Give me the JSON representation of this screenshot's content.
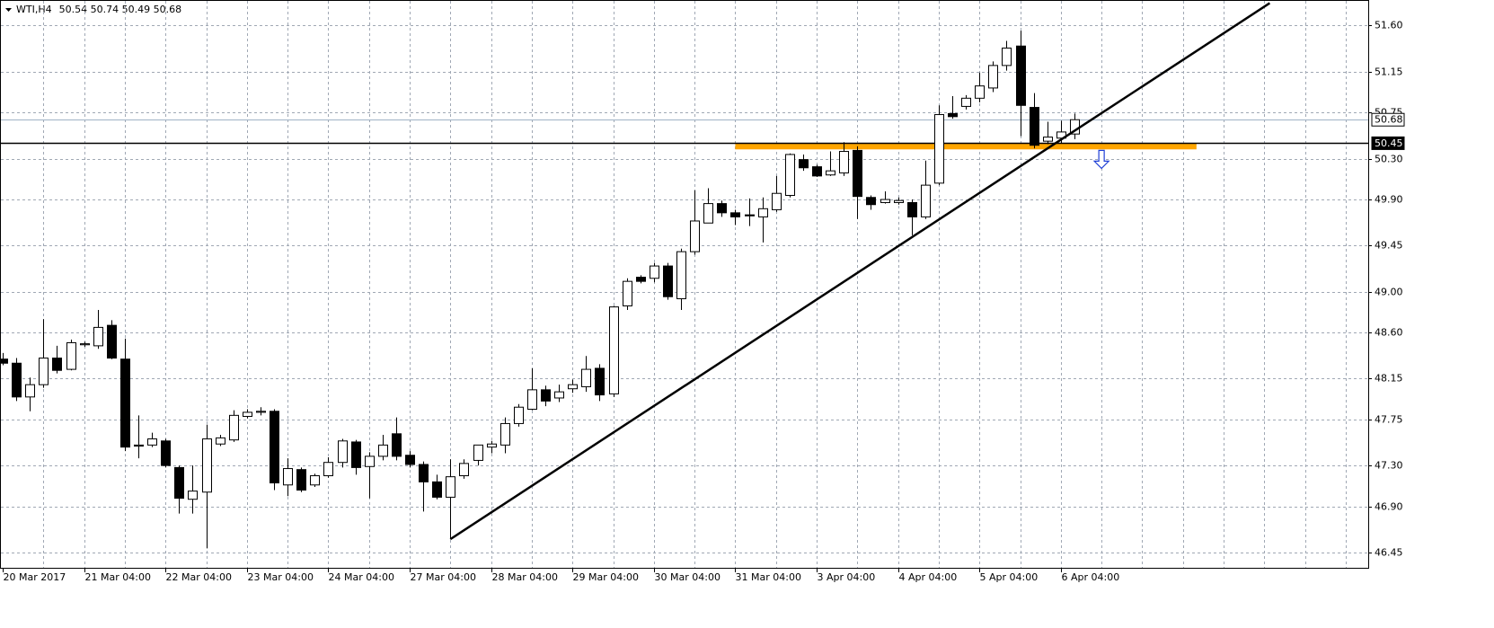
{
  "chart_data": {
    "type": "candlestick",
    "title": "WTI,H4",
    "title_values": "50.54 50.74 50.49 50.68",
    "categories": [
      "20 Mar 2017",
      null,
      null,
      null,
      null,
      null,
      "21 Mar 04:00",
      null,
      null,
      null,
      null,
      null,
      "22 Mar 04:00",
      null,
      null,
      null,
      null,
      null,
      "23 Mar 04:00",
      null,
      null,
      null,
      null,
      null,
      "24 Mar 04:00",
      null,
      null,
      null,
      null,
      null,
      "27 Mar 04:00",
      null,
      null,
      null,
      null,
      null,
      "28 Mar 04:00",
      null,
      null,
      null,
      null,
      null,
      "29 Mar 04:00",
      null,
      null,
      null,
      null,
      null,
      "30 Mar 04:00",
      null,
      null,
      null,
      null,
      null,
      "31 Mar 04:00",
      null,
      null,
      null,
      null,
      null,
      "3 Apr 04:00",
      null,
      null,
      null,
      null,
      null,
      "4 Apr 04:00",
      null,
      null,
      null,
      null,
      null,
      "5 Apr 04:00",
      null,
      null,
      null,
      null,
      null,
      "6 Apr 04:00",
      null
    ],
    "open": [
      48.34,
      48.3,
      47.97,
      48.09,
      48.35,
      48.24,
      48.48,
      48.47,
      48.67,
      48.34,
      47.49,
      47.5,
      47.54,
      47.28,
      46.97,
      47.04,
      47.51,
      47.55,
      47.78,
      47.82,
      47.83,
      47.11,
      47.26,
      47.11,
      47.2,
      47.33,
      47.53,
      47.29,
      47.39,
      47.61,
      47.4,
      47.31,
      47.14,
      46.99,
      47.2,
      47.35,
      47.48,
      47.5,
      47.71,
      47.85,
      48.04,
      47.96,
      48.05,
      48.07,
      48.25,
      48.0,
      48.86,
      49.14,
      49.13,
      49.25,
      48.93,
      49.39,
      49.67,
      49.86,
      49.77,
      49.75,
      49.73,
      49.8,
      49.94,
      50.29,
      50.22,
      50.14,
      50.16,
      50.38,
      49.92,
      49.87,
      49.87,
      49.87,
      49.73,
      50.06,
      50.74,
      50.81,
      50.89,
      50.99,
      51.21,
      51.4,
      50.8,
      50.47,
      50.5,
      50.54
    ],
    "high": [
      48.4,
      48.35,
      48.16,
      48.73,
      48.47,
      48.53,
      48.51,
      48.82,
      48.72,
      48.54,
      47.79,
      47.62,
      47.56,
      47.3,
      47.3,
      47.7,
      47.6,
      47.84,
      47.85,
      47.87,
      47.85,
      47.37,
      47.28,
      47.22,
      47.38,
      47.56,
      47.55,
      47.43,
      47.6,
      47.77,
      47.44,
      47.34,
      47.21,
      47.36,
      47.36,
      47.5,
      47.54,
      47.77,
      47.9,
      48.25,
      48.08,
      48.09,
      48.14,
      48.37,
      48.29,
      48.86,
      49.13,
      49.16,
      49.28,
      49.28,
      49.42,
      49.99,
      50.01,
      49.89,
      49.8,
      49.91,
      49.92,
      50.13,
      50.35,
      50.34,
      50.24,
      50.37,
      50.46,
      50.42,
      49.94,
      49.98,
      49.92,
      49.9,
      50.28,
      50.82,
      50.91,
      50.92,
      51.14,
      51.25,
      51.45,
      51.55,
      50.94,
      50.66,
      50.67,
      50.74
    ],
    "low": [
      48.28,
      47.93,
      47.83,
      48.06,
      48.2,
      48.23,
      48.46,
      48.44,
      48.34,
      47.44,
      47.37,
      47.48,
      47.28,
      46.83,
      46.83,
      46.49,
      47.49,
      47.53,
      47.76,
      47.79,
      47.06,
      47.0,
      47.04,
      47.09,
      47.18,
      47.28,
      47.21,
      46.98,
      47.35,
      47.35,
      47.28,
      46.85,
      46.97,
      46.58,
      47.17,
      47.3,
      47.42,
      47.42,
      47.68,
      47.84,
      47.88,
      47.92,
      48.01,
      48.02,
      47.93,
      47.97,
      48.82,
      49.08,
      49.09,
      48.92,
      48.82,
      49.36,
      49.67,
      49.73,
      49.65,
      49.64,
      49.48,
      49.78,
      49.92,
      50.18,
      50.12,
      50.13,
      50.13,
      49.71,
      49.8,
      49.86,
      49.85,
      49.55,
      49.71,
      50.04,
      50.69,
      50.78,
      50.85,
      50.95,
      51.16,
      50.52,
      50.4,
      50.44,
      50.45,
      50.49
    ],
    "close": [
      48.3,
      47.97,
      48.09,
      48.35,
      48.23,
      48.5,
      48.49,
      48.65,
      48.35,
      47.48,
      47.5,
      47.56,
      47.3,
      46.98,
      47.05,
      47.56,
      47.57,
      47.79,
      47.82,
      47.83,
      47.13,
      47.27,
      47.06,
      47.2,
      47.33,
      47.54,
      47.28,
      47.39,
      47.5,
      47.39,
      47.31,
      47.14,
      46.99,
      47.19,
      47.32,
      47.5,
      47.51,
      47.71,
      47.87,
      48.04,
      47.93,
      48.02,
      48.09,
      48.24,
      47.99,
      48.85,
      49.1,
      49.1,
      49.25,
      48.95,
      49.39,
      49.69,
      49.86,
      49.77,
      49.73,
      49.74,
      49.81,
      49.96,
      50.34,
      50.21,
      50.13,
      50.18,
      50.37,
      49.93,
      49.85,
      49.9,
      49.89,
      49.73,
      50.04,
      50.73,
      50.71,
      50.89,
      51.01,
      51.21,
      51.38,
      50.82,
      50.43,
      50.51,
      50.56,
      50.68
    ],
    "bull_color": "#ffffff",
    "bear_color": "#000000",
    "xlim": [
      -0.2,
      100.66
    ],
    "xticks": [
      3,
      6,
      9,
      12,
      15,
      18,
      21,
      24,
      27,
      30,
      33,
      36,
      39,
      42,
      45,
      48,
      51,
      54,
      57,
      60,
      63,
      66,
      69,
      72,
      75,
      78,
      81,
      84,
      87,
      90,
      93,
      96,
      99
    ],
    "ylim": [
      46.3,
      51.85
    ],
    "yticks": [
      {
        "value": 51.6,
        "label": "51.60"
      },
      51.15,
      50.75,
      {
        "value": 50.3,
        "label": "50.30"
      },
      {
        "value": 49.9,
        "label": "49.90"
      },
      49.45,
      {
        "value": 49,
        "label": "49.00"
      },
      {
        "value": 48.6,
        "label": "48.60"
      },
      48.15,
      47.75,
      {
        "value": 47.3,
        "label": "47.30"
      },
      {
        "value": 46.9,
        "label": "46.90"
      },
      46.45
    ],
    "grid": true,
    "hlines": [
      {
        "value": 50.68,
        "color": "#9fb2c6"
      },
      {
        "value": 50.45,
        "color": "#000000"
      }
    ],
    "trendline": {
      "x0": 33,
      "y0": 46.58,
      "x1": 93.4,
      "y1": 51.82,
      "color": "#000000"
    },
    "zone": {
      "x0": 54,
      "x1": 88,
      "y0": 50.39,
      "y1": 50.45,
      "color": "#ffa500"
    },
    "arrow": {
      "x": 81,
      "y": 50.38,
      "color": "#1f3fd6"
    }
  }
}
